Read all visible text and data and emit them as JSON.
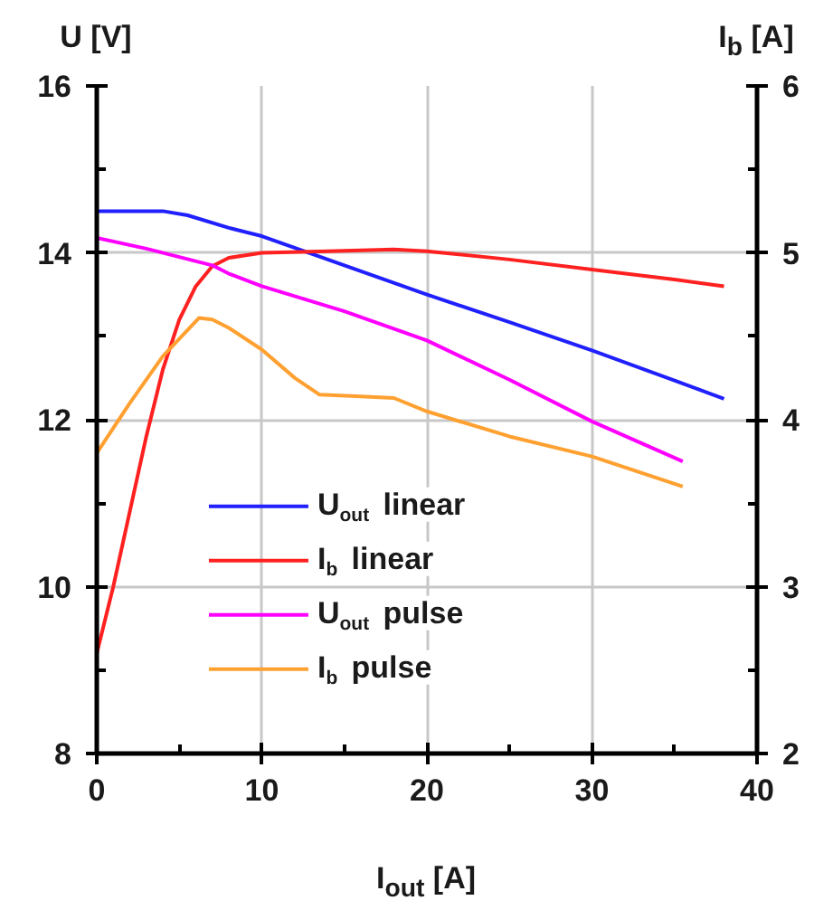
{
  "chart_data": {
    "type": "line",
    "ylabel": "U [V]",
    "y2label": "I$_{b}$ [A]",
    "xlabel": "I$_{out}$ [A]",
    "xlim": [
      0,
      40
    ],
    "ylim": [
      8,
      16
    ],
    "y2lim": [
      2,
      6
    ],
    "xticks": [
      0,
      {
        "value": 5,
        "label": null
      },
      10,
      {
        "value": 15,
        "label": null
      },
      20,
      {
        "value": 25,
        "label": null
      },
      30,
      {
        "value": 35,
        "label": null
      },
      40
    ],
    "yticks": [
      8,
      {
        "value": 9,
        "label": null
      },
      10,
      {
        "value": 11,
        "label": null
      },
      12,
      {
        "value": 13,
        "label": null
      },
      14,
      {
        "value": 15,
        "label": null
      },
      16
    ],
    "y2ticks": [
      2,
      {
        "value": 2.5,
        "label": null
      },
      3,
      {
        "value": 3.5,
        "label": null
      },
      4,
      {
        "value": 4.5,
        "label": null
      },
      5,
      {
        "value": 5.5,
        "label": null
      },
      6
    ],
    "grid": true,
    "legend": "bottom left",
    "series": [
      {
        "name": "U$_{out}$ linear",
        "color": "#2020ff",
        "x": [
          0,
          2,
          4,
          5.5,
          8,
          10,
          15,
          20,
          25,
          30,
          35,
          38
        ],
        "values": [
          14.5,
          14.5,
          14.5,
          14.45,
          14.3,
          14.2,
          13.85,
          13.5,
          13.17,
          12.83,
          12.47,
          12.25
        ]
      },
      {
        "name": "I$_{b}$ linear",
        "color": "#ff2020",
        "axis": "y2",
        "x": [
          0,
          1,
          2,
          3,
          4,
          5,
          6,
          7,
          8,
          10,
          14,
          18,
          20,
          25,
          30,
          35,
          38
        ],
        "values": [
          2.6,
          3.0,
          3.45,
          3.9,
          4.3,
          4.6,
          4.8,
          4.92,
          4.97,
          5.0,
          5.01,
          5.02,
          5.01,
          4.96,
          4.9,
          4.84,
          4.8
        ]
      },
      {
        "name": "U$_{out}$ pulse",
        "color": "#ff00ff",
        "x": [
          0,
          3,
          5,
          7,
          8,
          10,
          15,
          20,
          25,
          30,
          35.5
        ],
        "values": [
          14.18,
          14.05,
          13.95,
          13.85,
          13.75,
          13.6,
          13.3,
          12.95,
          12.48,
          11.98,
          11.5
        ]
      },
      {
        "name": "I$_{b}$ pulse",
        "color": "#ffa030",
        "axis": "y2",
        "x": [
          0,
          2,
          4,
          6.2,
          7,
          8,
          10,
          12,
          13.5,
          16,
          18,
          20,
          25,
          30,
          35.5
        ],
        "values": [
          3.8,
          4.1,
          4.38,
          4.61,
          4.6,
          4.55,
          4.42,
          4.25,
          4.15,
          4.14,
          4.13,
          4.05,
          3.9,
          3.78,
          3.6
        ]
      }
    ]
  }
}
